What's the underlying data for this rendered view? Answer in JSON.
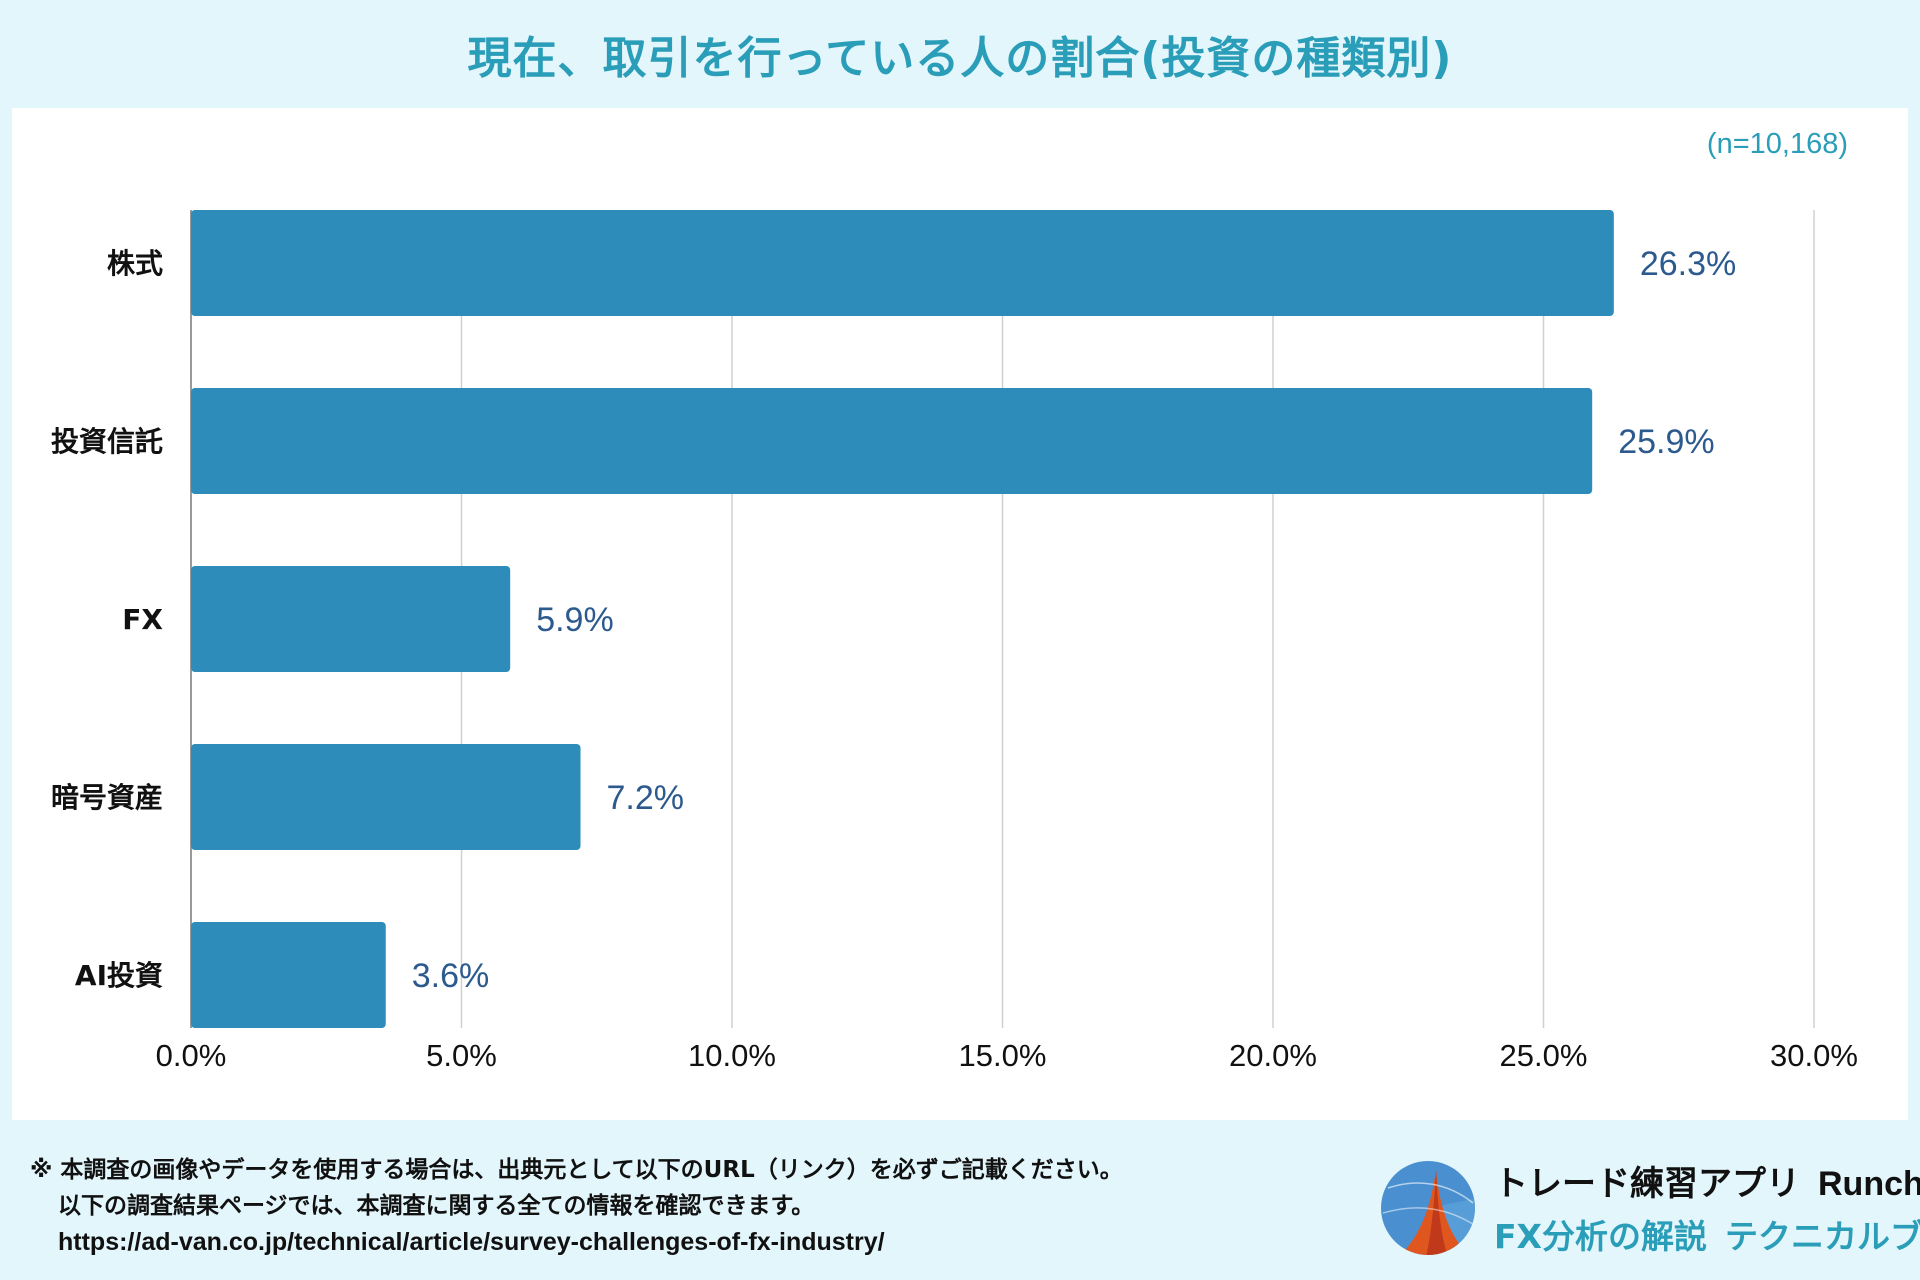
{
  "title": "現在、取引を行っている人の割合(投資の種類別)",
  "sample_size": "(n=10,168)",
  "colors": {
    "bar": "#2e8cbb",
    "value_label": "#2d5a8e",
    "title": "#2a9db8",
    "grid": "#d0d0d0"
  },
  "chart_data": {
    "type": "bar",
    "orientation": "horizontal",
    "categories": [
      "株式",
      "投資信託",
      "FX",
      "暗号資産",
      "AI投資"
    ],
    "values": [
      26.3,
      25.9,
      5.9,
      7.2,
      3.6
    ],
    "value_labels": [
      "26.3%",
      "25.9%",
      "5.9%",
      "7.2%",
      "3.6%"
    ],
    "xlim": [
      0,
      30
    ],
    "xticks": [
      0,
      5,
      10,
      15,
      20,
      25,
      30
    ],
    "xtick_labels": [
      "0.0%",
      "5.0%",
      "10.0%",
      "15.0%",
      "20.0%",
      "25.0%",
      "30.0%"
    ],
    "grid": true,
    "title": "現在、取引を行っている人の割合(投資の種類別)",
    "xlabel": "",
    "ylabel": ""
  },
  "footer": {
    "note_line1": "※ 本調査の画像やデータを使用する場合は、出典元として以下のURL（リンク）を必ずご記載ください。",
    "note_line2": "以下の調査結果ページでは、本調査に関する全ての情報を確認できます。",
    "url": "https://ad-van.co.jp/technical/article/survey-challenges-of-fx-industry/"
  },
  "brand": {
    "app_label": "トレード練習アプリ",
    "app_name": "Runcha",
    "sub_label": "FX分析の解説",
    "sub_name": "テクニカルブック",
    "logo_icon": "runcha-logo-icon"
  }
}
